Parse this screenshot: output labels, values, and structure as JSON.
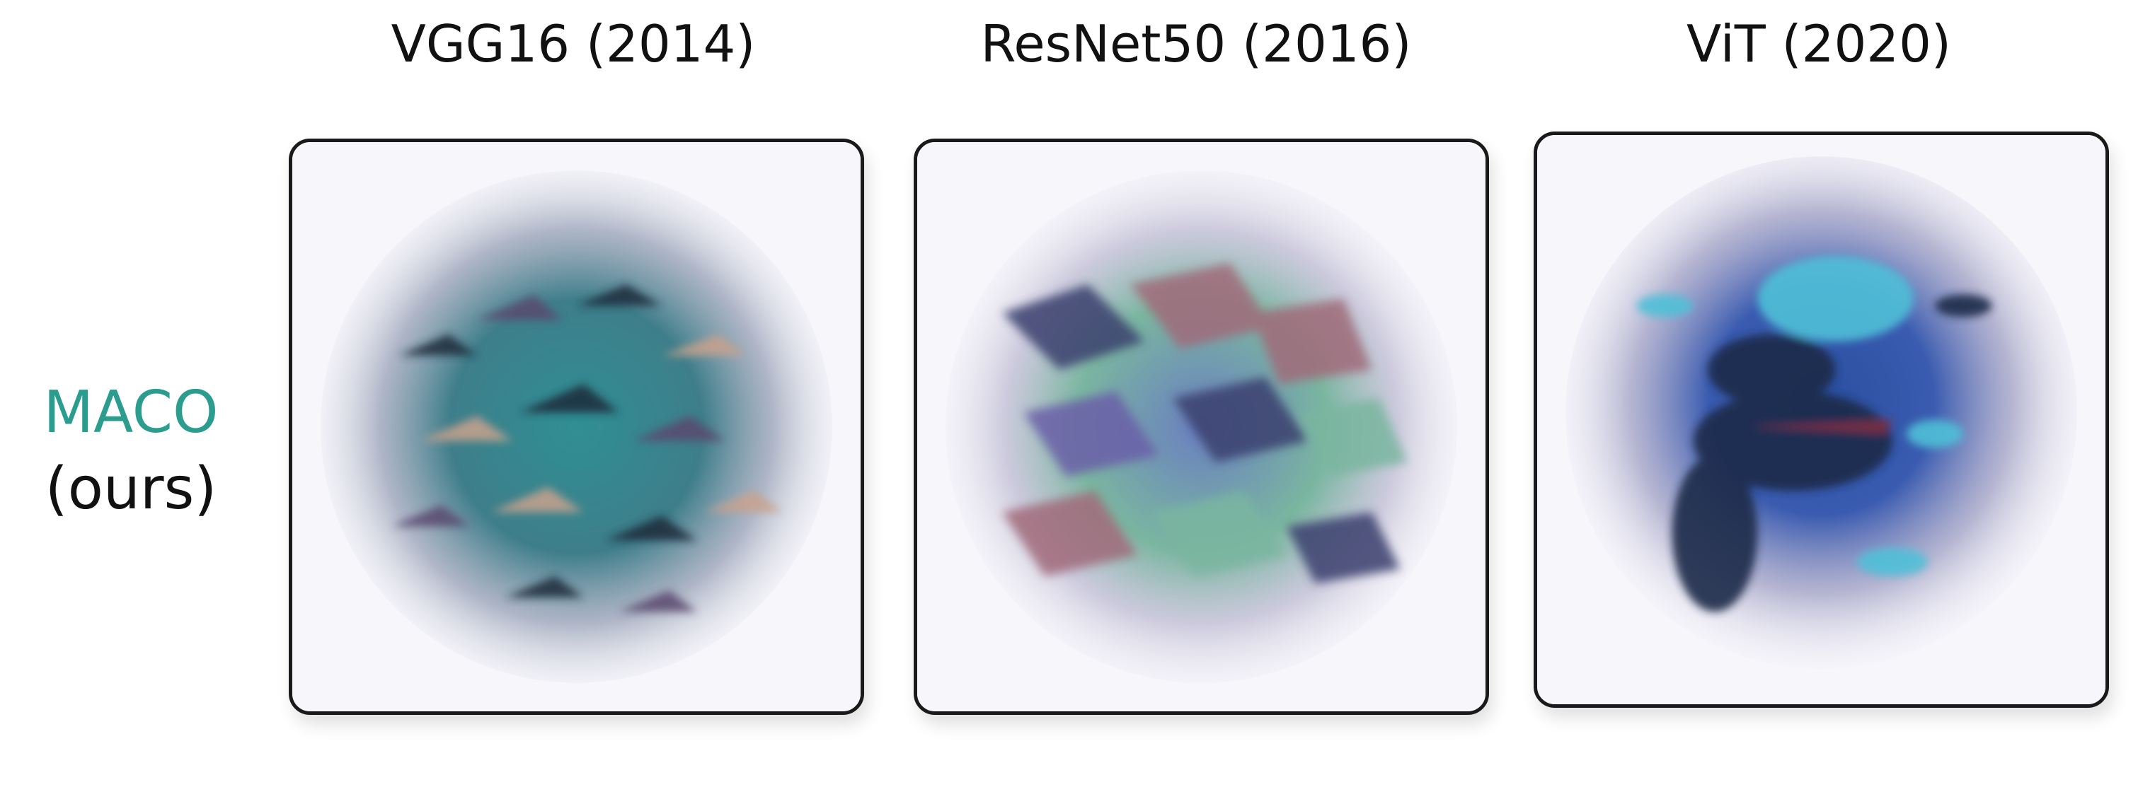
{
  "columns": [
    {
      "title": "VGG16 (2014)"
    },
    {
      "title": "ResNet50 (2016)"
    },
    {
      "title": "ViT (2020)"
    }
  ],
  "row": {
    "method": "MACO",
    "sub": "(ours)"
  },
  "colors": {
    "method_accent": "#2a9d8f",
    "text": "#111111",
    "panel_border": "#1a1a1a"
  },
  "images": [
    {
      "depicts": "feature-visualization-shark-pattern",
      "palette": [
        "#2f8f94",
        "#5a4a6e",
        "#c9a28c",
        "#1e2a3a"
      ]
    },
    {
      "depicts": "feature-visualization-shark-pattern",
      "palette": [
        "#6a5fa8",
        "#7ab6a0",
        "#a06a7a",
        "#3b3f6e"
      ]
    },
    {
      "depicts": "feature-visualization-shark-pattern",
      "palette": [
        "#2a4fa0",
        "#4fc0d8",
        "#1d2b4a",
        "#7a2a3a"
      ]
    }
  ]
}
